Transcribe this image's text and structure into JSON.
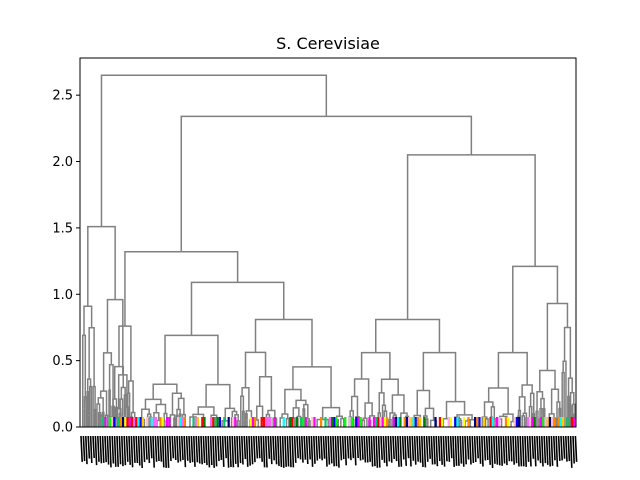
{
  "chart_data": {
    "type": "dendrogram",
    "title": "S. Cerevisiae",
    "xlabel": "",
    "ylabel": "",
    "ylim": [
      0,
      2.78
    ],
    "y_ticks": [
      0.0,
      0.5,
      1.0,
      1.5,
      2.0,
      2.5
    ],
    "y_tick_labels": [
      "0.0",
      "0.5",
      "1.0",
      "1.5",
      "2.0",
      "2.5"
    ],
    "grid": false,
    "link_color": "#808080",
    "leaf_colors": [
      "#ff0000",
      "#ffff00",
      "#ffcc00",
      "#00ff00",
      "#00ffff",
      "#0000ff",
      "#ff00ff",
      "#ffc0cb",
      "#000080",
      "#008000",
      "#ff8800",
      "#ff66ff",
      "#00cc66",
      "#ffaaff"
    ],
    "clusters": [
      {
        "name": "root",
        "height": 2.65,
        "children": [
          "A",
          "B"
        ]
      },
      {
        "name": "A",
        "height": 1.51,
        "children": [
          "A1",
          "A2"
        ]
      },
      {
        "name": "A1",
        "height": 0.91
      },
      {
        "name": "A2",
        "height": 0.96
      },
      {
        "name": "B",
        "height": 2.34,
        "children": [
          "C",
          "D"
        ]
      },
      {
        "name": "C",
        "height": 1.32,
        "children": [
          "C1",
          "C2"
        ]
      },
      {
        "name": "C1",
        "height": 0.76
      },
      {
        "name": "C2",
        "height": 1.09,
        "children": [
          "C2a",
          "C2b"
        ]
      },
      {
        "name": "C2a",
        "height": 0.69
      },
      {
        "name": "C2b",
        "height": 0.81
      },
      {
        "name": "D",
        "height": 2.05,
        "children": [
          "D1",
          "D2"
        ]
      },
      {
        "name": "D1",
        "height": 0.81,
        "children": [
          "D1a",
          "D1b"
        ]
      },
      {
        "name": "D1a",
        "height": 0.56
      },
      {
        "name": "D1b",
        "height": 0.56
      },
      {
        "name": "D2",
        "height": 1.21,
        "children": [
          "D2a",
          "D2b"
        ]
      },
      {
        "name": "D2a",
        "height": 0.56
      },
      {
        "name": "D2b",
        "height": 0.93
      }
    ]
  }
}
